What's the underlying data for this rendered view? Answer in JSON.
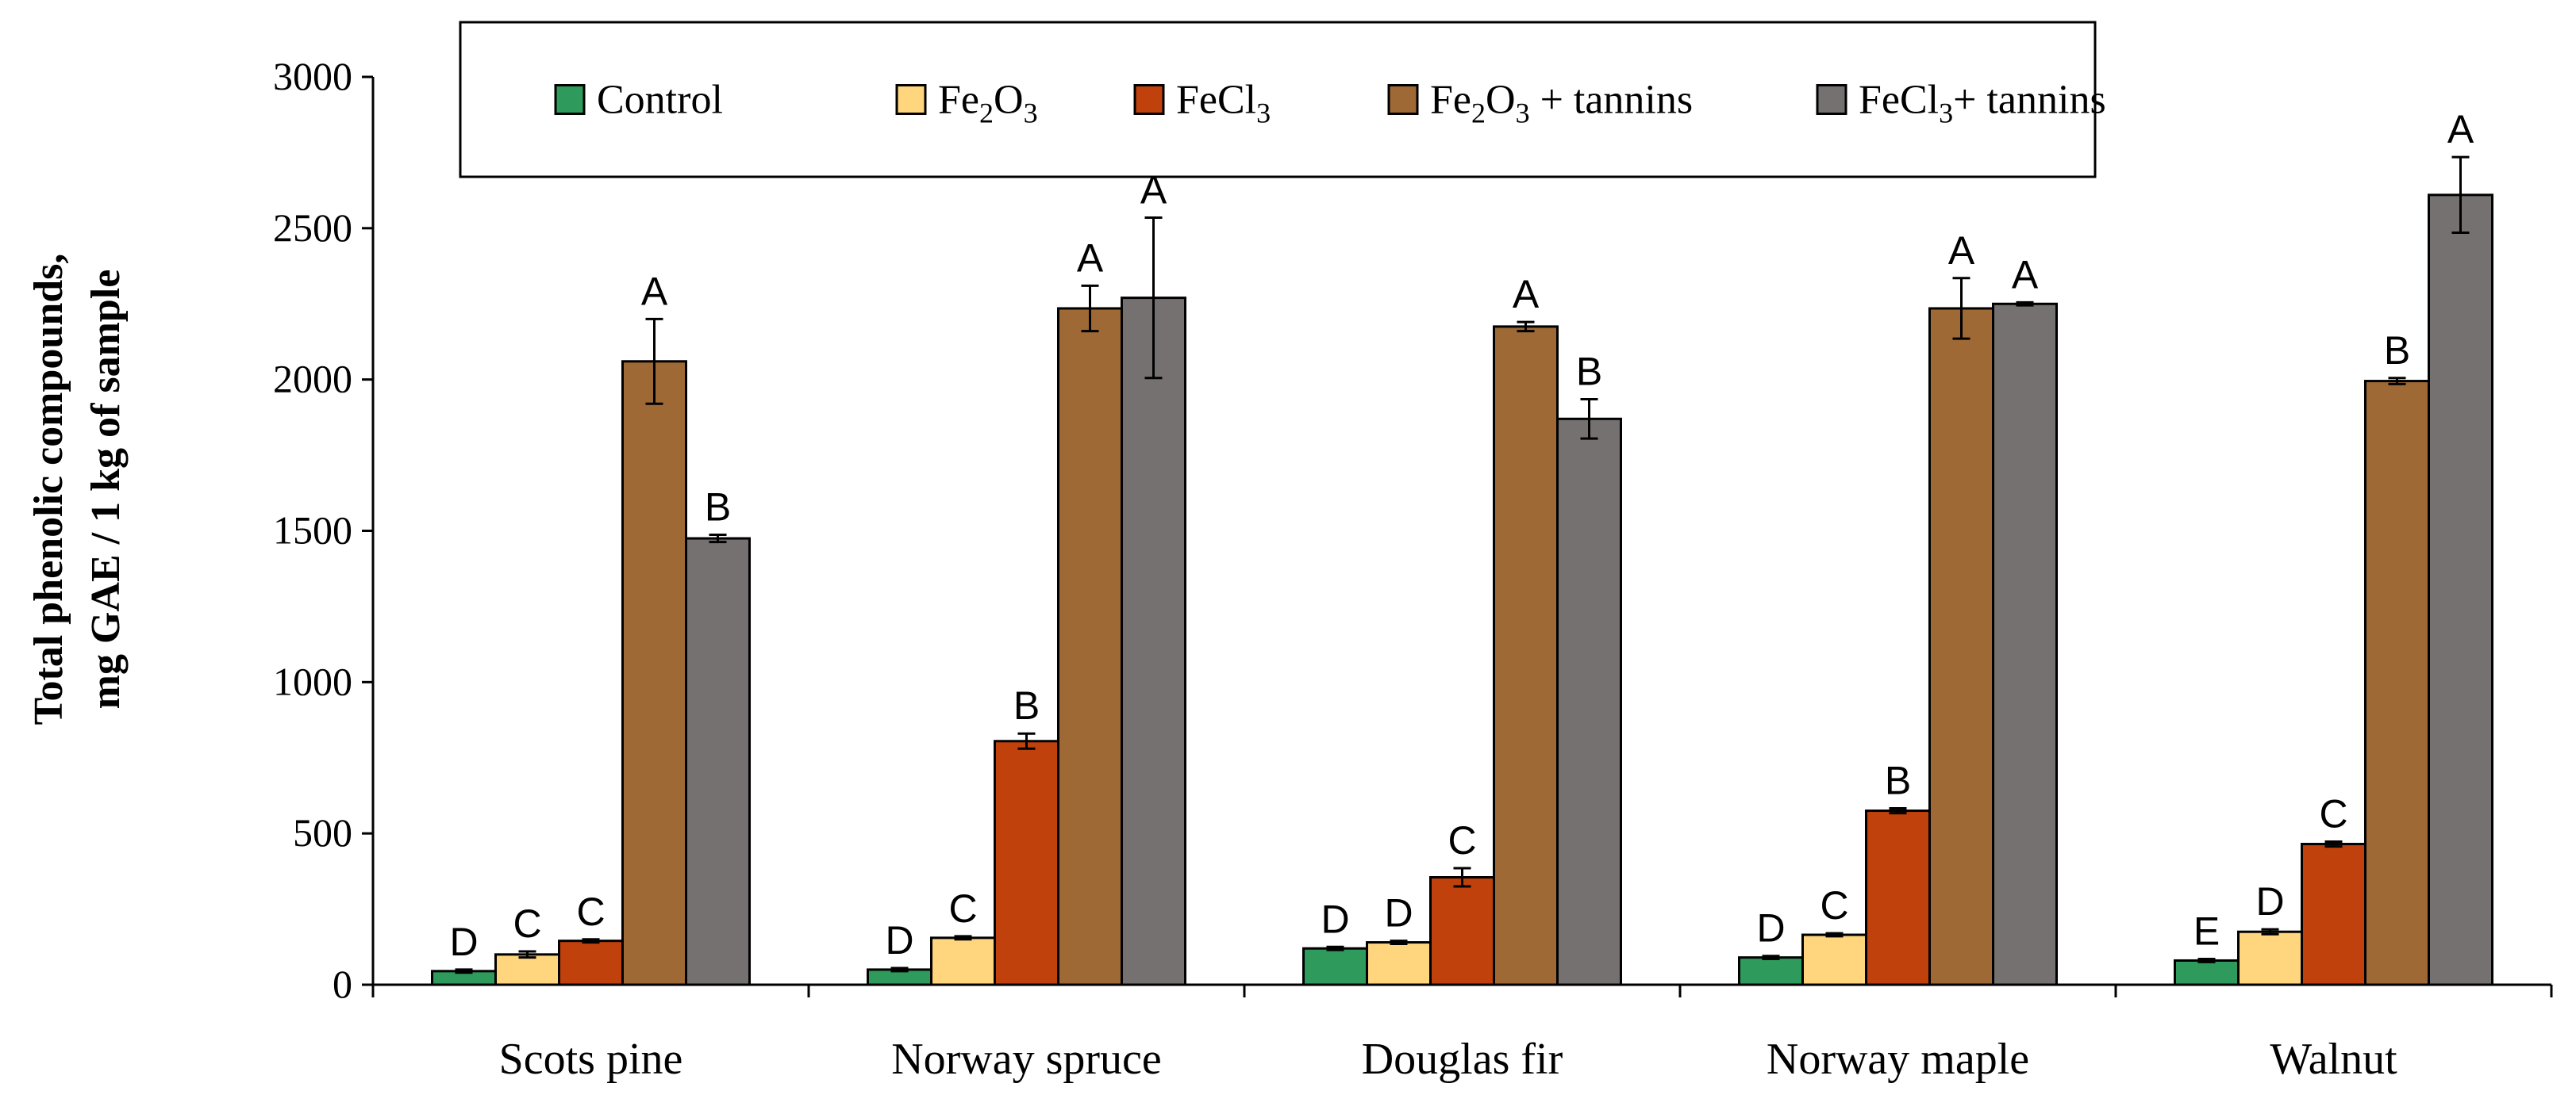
{
  "chart_data": {
    "type": "bar",
    "ylabel_line1": "Total phenolic compounds,",
    "ylabel_line2": "mg GAE / 1 kg of sample",
    "ylim": [
      0,
      3000
    ],
    "yticks": [
      "0",
      "500",
      "1000",
      "1500",
      "2000",
      "2500",
      "3000"
    ],
    "categories": [
      "Scots pine",
      "Norway spruce",
      "Douglas fir",
      "Norway maple",
      "Walnut"
    ],
    "legend": {
      "position": "top",
      "entries": [
        {
          "text": "Control"
        },
        {
          "text": "Fe",
          "sub": "2",
          "tail": "O",
          "sub2": "3",
          "after": ""
        },
        {
          "text": "FeCl",
          "sub": "3",
          "tail": "",
          "sub2": "",
          "after": ""
        },
        {
          "text": "Fe",
          "sub": "2",
          "tail": "O",
          "sub2": "3",
          "after": " + tannins"
        },
        {
          "text": "FeCl",
          "sub": "3",
          "tail": "",
          "sub2": "",
          "after": "+ tannins"
        }
      ]
    },
    "series": [
      {
        "name": "Control",
        "color": "#2e9a5b",
        "values": [
          45,
          50,
          120,
          90,
          80
        ],
        "errors": [
          5,
          5,
          5,
          5,
          5
        ],
        "letters": [
          "D",
          "D",
          "D",
          "D",
          "E"
        ]
      },
      {
        "name": "Fe2O3",
        "color": "#ffd57e",
        "values": [
          100,
          155,
          140,
          165,
          175
        ],
        "errors": [
          10,
          5,
          5,
          5,
          8
        ],
        "letters": [
          "C",
          "C",
          "D",
          "C",
          "D"
        ]
      },
      {
        "name": "FeCl3",
        "color": "#c0410b",
        "values": [
          145,
          805,
          355,
          575,
          465
        ],
        "errors": [
          5,
          25,
          30,
          8,
          8
        ],
        "letters": [
          "C",
          "B",
          "C",
          "B",
          "C"
        ]
      },
      {
        "name": "Fe2O3 + tannins",
        "color": "#9e6935",
        "values": [
          2060,
          2235,
          2175,
          2235,
          1995
        ],
        "errors": [
          140,
          75,
          15,
          100,
          10
        ],
        "letters": [
          "A",
          "A",
          "A",
          "A",
          "B"
        ]
      },
      {
        "name": "FeCl3+ tannins",
        "color": "#767171",
        "values": [
          1475,
          2270,
          1870,
          2250,
          2610
        ],
        "errors": [
          12,
          265,
          65,
          5,
          125
        ],
        "letters": [
          "B",
          "A",
          "B",
          "A",
          "A"
        ]
      }
    ]
  }
}
